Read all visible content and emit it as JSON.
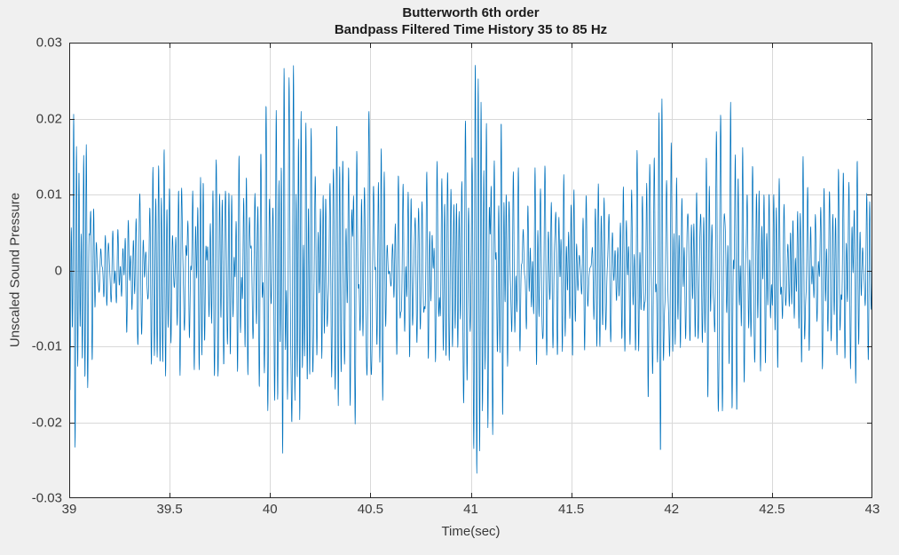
{
  "figure": {
    "background": "#f0f0f0",
    "title_line1": "Butterworth 6th order",
    "title_line2": "Bandpass Filtered Time History 35 to 85 Hz"
  },
  "chart_data": {
    "type": "line",
    "title": "Butterworth 6th order",
    "subtitle": "Bandpass Filtered Time History 35 to 85 Hz",
    "xlabel": "Time(sec)",
    "ylabel": "Unscaled Sound Pressure",
    "xlim": [
      39,
      43
    ],
    "ylim": [
      -0.03,
      0.03
    ],
    "xticks": [
      39,
      39.5,
      40,
      40.5,
      41,
      41.5,
      42,
      42.5,
      43
    ],
    "xtick_labels": [
      "39",
      "39.5",
      "40",
      "40.5",
      "41",
      "41.5",
      "42",
      "42.5",
      "43"
    ],
    "yticks": [
      -0.03,
      -0.02,
      -0.01,
      0,
      0.01,
      0.02,
      0.03
    ],
    "ytick_labels": [
      "-0.03",
      "-0.02",
      "-0.01",
      "0",
      "0.01",
      "0.02",
      "0.03"
    ],
    "grid": true,
    "legend": null,
    "line_color": "#0072BD",
    "axes_color": "#262626",
    "grid_color": "#d9d9d9",
    "plot_background": "#ffffff",
    "signal": {
      "kind": "bandpass_filtered_noise",
      "band_hz": [
        35,
        85
      ],
      "sample_rate_hz": 1000,
      "components": 48,
      "seed": 1337,
      "envelope_t": [
        39.0,
        39.05,
        39.1,
        39.15,
        39.2,
        39.25,
        39.3,
        39.35,
        39.4,
        39.45,
        39.5,
        39.55,
        39.6,
        39.65,
        39.7,
        39.75,
        39.8,
        39.85,
        39.9,
        39.95,
        40.0,
        40.05,
        40.1,
        40.15,
        40.2,
        40.25,
        40.3,
        40.35,
        40.4,
        40.45,
        40.5,
        40.55,
        40.6,
        40.65,
        40.7,
        40.75,
        40.8,
        40.85,
        40.9,
        40.95,
        41.0,
        41.05,
        41.1,
        41.15,
        41.2,
        41.25,
        41.3,
        41.35,
        41.4,
        41.45,
        41.5,
        41.55,
        41.6,
        41.65,
        41.7,
        41.75,
        41.8,
        41.85,
        41.9,
        41.95,
        42.0,
        42.05,
        42.1,
        42.15,
        42.2,
        42.25,
        42.3,
        42.35,
        42.4,
        42.45,
        42.5,
        42.55,
        42.6,
        42.65,
        42.7,
        42.75,
        42.8,
        42.85,
        42.9,
        42.95,
        43.0
      ],
      "envelope_a": [
        0.023,
        0.0235,
        0.014,
        0.006,
        0.0048,
        0.006,
        0.009,
        0.01,
        0.014,
        0.0158,
        0.016,
        0.0142,
        0.0145,
        0.013,
        0.0138,
        0.015,
        0.0158,
        0.015,
        0.014,
        0.018,
        0.024,
        0.0272,
        0.028,
        0.025,
        0.019,
        0.016,
        0.018,
        0.0198,
        0.02,
        0.0205,
        0.021,
        0.018,
        0.014,
        0.012,
        0.013,
        0.014,
        0.015,
        0.014,
        0.0135,
        0.0185,
        0.0293,
        0.025,
        0.022,
        0.02,
        0.015,
        0.013,
        0.014,
        0.013,
        0.015,
        0.0132,
        0.0112,
        0.011,
        0.01,
        0.012,
        0.012,
        0.0105,
        0.013,
        0.018,
        0.021,
        0.024,
        0.0165,
        0.013,
        0.012,
        0.0145,
        0.018,
        0.022,
        0.024,
        0.02,
        0.015,
        0.013,
        0.0122,
        0.0132,
        0.014,
        0.015,
        0.015,
        0.013,
        0.0122,
        0.014,
        0.0158,
        0.013,
        0.011
      ]
    }
  }
}
